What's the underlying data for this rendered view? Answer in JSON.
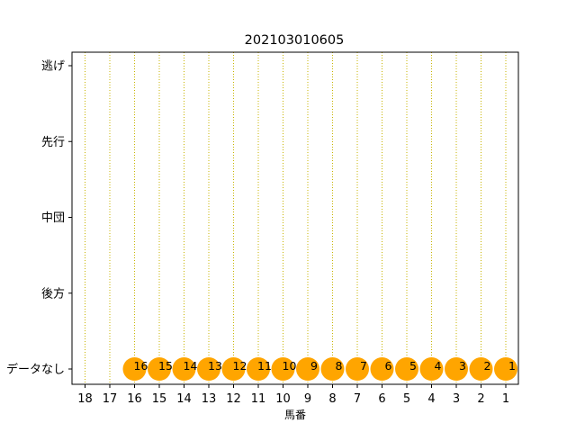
{
  "chart_data": {
    "type": "scatter",
    "title": "202103010605",
    "xlabel": "馬番",
    "ylabel": "",
    "x_ticks": [
      "18",
      "17",
      "16",
      "15",
      "14",
      "13",
      "12",
      "11",
      "10",
      "9",
      "8",
      "7",
      "6",
      "5",
      "4",
      "3",
      "2",
      "1"
    ],
    "y_categories": [
      "データなし",
      "後方",
      "中団",
      "先行",
      "逃げ"
    ],
    "x_axis_direction": "descending (18 on left, 1 on right)",
    "grid": "vertical dotted lines at each x tick",
    "colors": {
      "marker": "#ffa500",
      "grid": "#c8b400",
      "axis": "#000000"
    },
    "points": [
      {
        "x": 16,
        "y": "データなし",
        "label": "16"
      },
      {
        "x": 15,
        "y": "データなし",
        "label": "15"
      },
      {
        "x": 14,
        "y": "データなし",
        "label": "14"
      },
      {
        "x": 13,
        "y": "データなし",
        "label": "13"
      },
      {
        "x": 12,
        "y": "データなし",
        "label": "12"
      },
      {
        "x": 11,
        "y": "データなし",
        "label": "11"
      },
      {
        "x": 10,
        "y": "データなし",
        "label": "10"
      },
      {
        "x": 9,
        "y": "データなし",
        "label": "9"
      },
      {
        "x": 8,
        "y": "データなし",
        "label": "8"
      },
      {
        "x": 7,
        "y": "データなし",
        "label": "7"
      },
      {
        "x": 6,
        "y": "データなし",
        "label": "6"
      },
      {
        "x": 5,
        "y": "データなし",
        "label": "5"
      },
      {
        "x": 4,
        "y": "データなし",
        "label": "4"
      },
      {
        "x": 3,
        "y": "データなし",
        "label": "3"
      },
      {
        "x": 2,
        "y": "データなし",
        "label": "2"
      },
      {
        "x": 1,
        "y": "データなし",
        "label": "1"
      }
    ]
  }
}
